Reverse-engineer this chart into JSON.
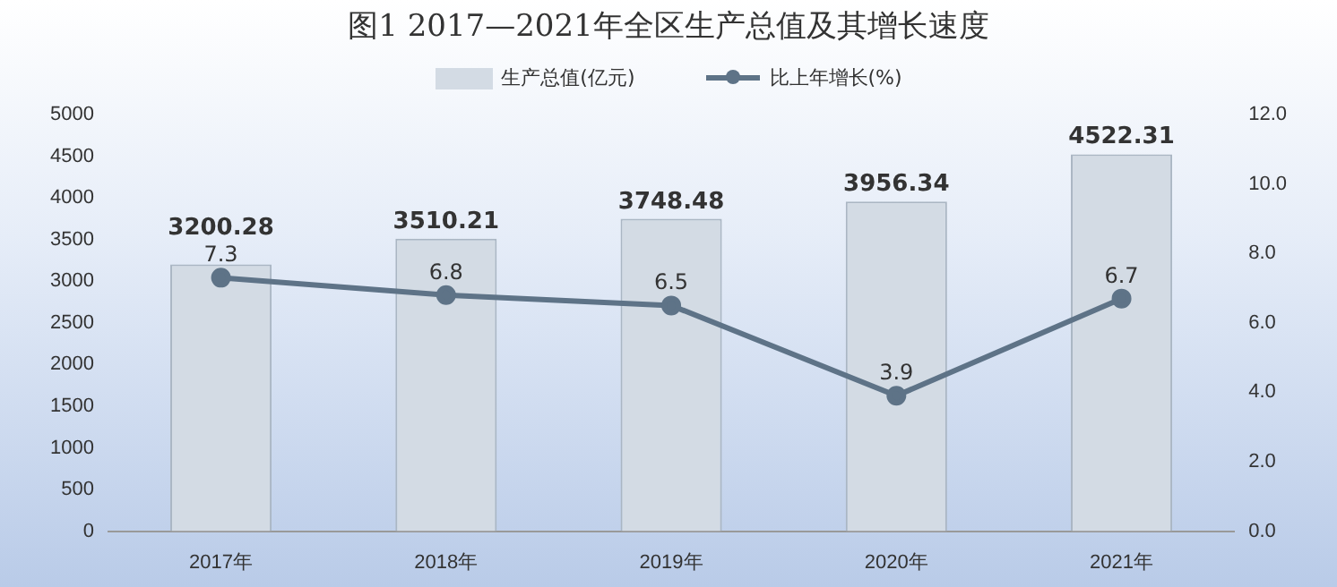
{
  "chart_data": {
    "type": "bar",
    "title": "图1  2017—2021年全区生产总值及其增长速度",
    "categories": [
      "2017年",
      "2018年",
      "2019年",
      "2020年",
      "2021年"
    ],
    "series": [
      {
        "name": "生产总值(亿元)",
        "color": "#d3dbe4",
        "values": [
          3200.28,
          3510.21,
          3748.48,
          3956.34,
          4522.31
        ]
      },
      {
        "name": "比上年增长(%)",
        "type": "line",
        "axis": "y2",
        "color": "#5e7387",
        "values": [
          7.3,
          6.8,
          6.5,
          3.9,
          6.7
        ]
      }
    ],
    "ylim": [
      0,
      5000
    ],
    "yticks": [
      0,
      500,
      1000,
      1500,
      2000,
      2500,
      3000,
      3500,
      4000,
      4500,
      5000
    ],
    "y2lim": [
      0,
      12
    ],
    "y2ticks": [
      {
        "value": 0,
        "label": "0.0"
      },
      {
        "value": 2,
        "label": "2.0"
      },
      {
        "value": 4,
        "label": "4.0"
      },
      {
        "value": 6,
        "label": "6.0"
      },
      {
        "value": 8,
        "label": "8.0"
      },
      {
        "value": 10,
        "label": "10.0"
      },
      {
        "value": 12,
        "label": "12.0"
      }
    ],
    "grid": false,
    "legend": "top",
    "marker": "circle",
    "line_style": "solid",
    "data_labels": true
  }
}
